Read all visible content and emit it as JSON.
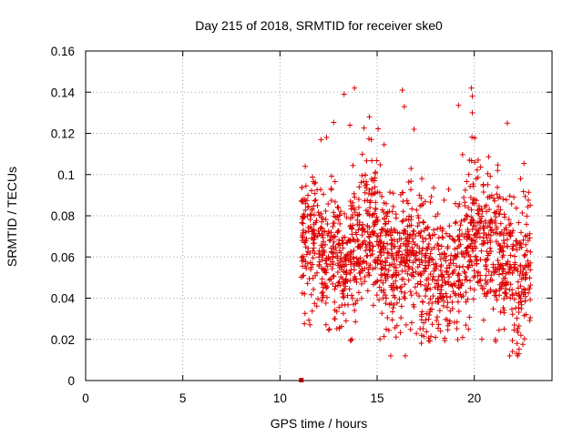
{
  "chart_data": {
    "type": "scatter",
    "title": "Day 215 of 2018, SRMTID for receiver ske0",
    "xlabel": "GPS time / hours",
    "ylabel": "SRMTID / TECUs",
    "xlim": [
      0,
      24
    ],
    "ylim": [
      0,
      0.16
    ],
    "xticks": [
      0,
      5,
      10,
      15,
      20
    ],
    "yticks": [
      0,
      0.02,
      0.04,
      0.06,
      0.08,
      0.1,
      0.12,
      0.14,
      0.16
    ],
    "xtick_labels": [
      "0",
      "5",
      "10",
      "15",
      "20"
    ],
    "ytick_labels": [
      "0",
      "0.02",
      "0.04",
      "0.06",
      "0.08",
      "0.1",
      "0.12",
      "0.14",
      "0.16"
    ],
    "grid": true,
    "marker": "plus",
    "color": "#dd0000",
    "x_start": 11.1,
    "x_end": 22.9,
    "n_points": 1600,
    "profile": [
      [
        11.1,
        0.068
      ],
      [
        11.8,
        0.072
      ],
      [
        12.4,
        0.062
      ],
      [
        13.0,
        0.058
      ],
      [
        13.5,
        0.06
      ],
      [
        14.2,
        0.068
      ],
      [
        14.7,
        0.074
      ],
      [
        15.3,
        0.06
      ],
      [
        15.8,
        0.058
      ],
      [
        16.4,
        0.062
      ],
      [
        17.2,
        0.056
      ],
      [
        18.0,
        0.052
      ],
      [
        18.7,
        0.05
      ],
      [
        19.3,
        0.058
      ],
      [
        19.9,
        0.072
      ],
      [
        20.5,
        0.066
      ],
      [
        21.0,
        0.064
      ],
      [
        21.6,
        0.056
      ],
      [
        22.2,
        0.05
      ],
      [
        22.9,
        0.054
      ]
    ],
    "spread": 0.016,
    "outliers": [
      [
        12.4,
        0.118
      ],
      [
        13.3,
        0.139
      ],
      [
        13.6,
        0.124
      ],
      [
        14.6,
        0.128
      ],
      [
        14.7,
        0.117
      ],
      [
        16.3,
        0.141
      ],
      [
        16.4,
        0.133
      ],
      [
        16.9,
        0.122
      ],
      [
        19.9,
        0.138
      ],
      [
        19.9,
        0.13
      ],
      [
        21.7,
        0.125
      ],
      [
        21.2,
        0.102
      ],
      [
        11.3,
        0.104
      ],
      [
        20.2,
        0.107
      ],
      [
        17.3,
        0.098
      ],
      [
        13.7,
        0.02
      ],
      [
        18.0,
        0.021
      ],
      [
        21.1,
        0.019
      ],
      [
        22.3,
        0.013
      ],
      [
        22.2,
        0.018
      ],
      [
        13.4,
        0.029
      ],
      [
        19.7,
        0.025
      ],
      [
        17.4,
        0.028
      ],
      [
        12.8,
        0.03
      ],
      [
        22.4,
        0.022
      ]
    ],
    "extra_markers": [
      {
        "x": 11.1,
        "y": 0.0,
        "shape": "square"
      }
    ]
  }
}
